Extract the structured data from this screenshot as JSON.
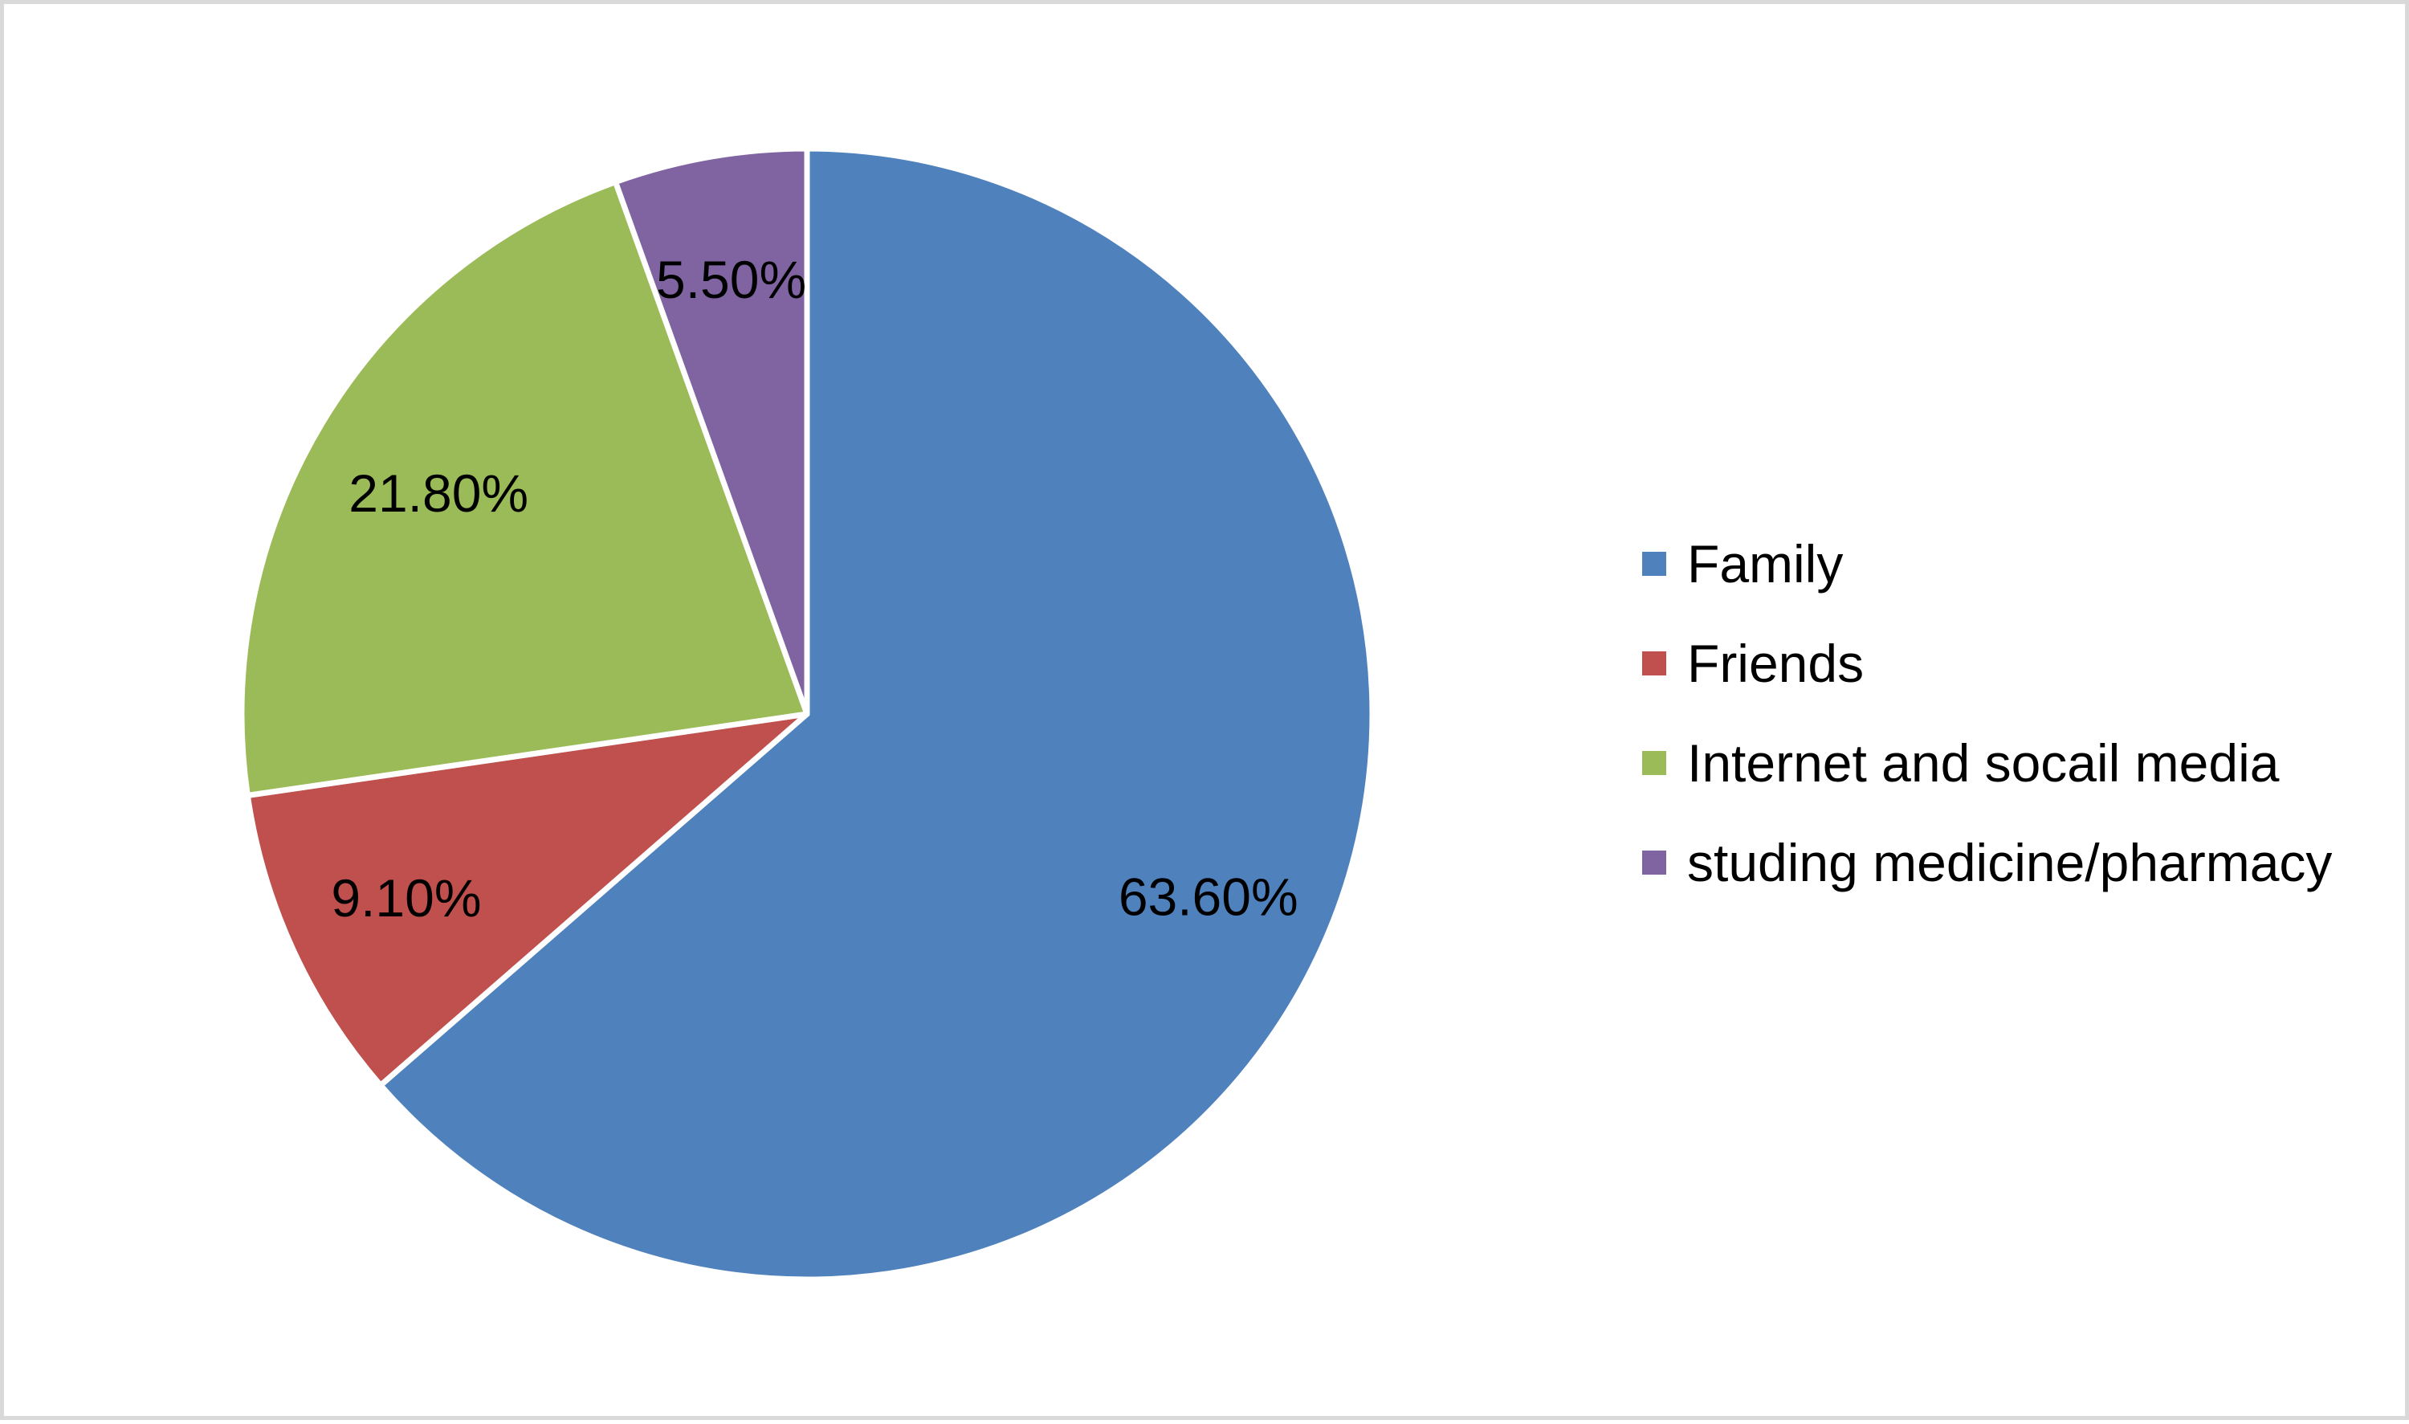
{
  "chart_data": {
    "type": "pie",
    "title": "",
    "start_angle_deg": 0,
    "direction": "clockwise",
    "legend_position": "right",
    "slices": [
      {
        "label": "Family",
        "value": 63.6,
        "display": "63.60%",
        "color": "#4f81bd"
      },
      {
        "label": "Friends",
        "value": 9.1,
        "display": "9.10%",
        "color": "#c0504d"
      },
      {
        "label": "Internet and socail media",
        "value": 21.8,
        "display": "21.80%",
        "color": "#9bbb59"
      },
      {
        "label": "studing medicine/pharmacy",
        "value": 5.5,
        "display": "5.50%",
        "color": "#8064a2"
      }
    ]
  }
}
